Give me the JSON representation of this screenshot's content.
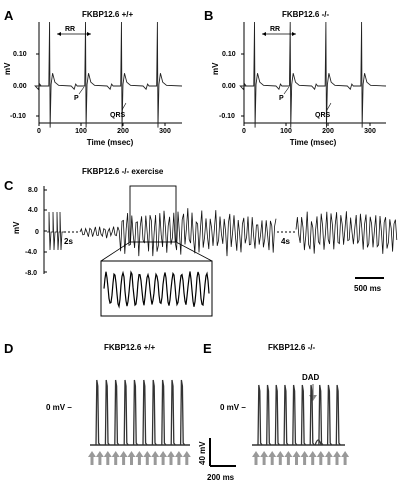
{
  "panels": {
    "A": {
      "letter": "A",
      "title": "FKBP12.6 +/+",
      "ylabel": "mV",
      "yticks": [
        "0.10",
        "0.00",
        "-0.10"
      ],
      "xticks": [
        "0",
        "100",
        "200",
        "300"
      ],
      "xlabel": "Time (msec)",
      "rr_label": "RR",
      "p_label": "P",
      "qrs_label": "QRS"
    },
    "B": {
      "letter": "B",
      "title": "FKBP12.6 -/-",
      "ylabel": "mV",
      "yticks": [
        "0.10",
        "0.00",
        "-0.10"
      ],
      "xticks": [
        "0",
        "100",
        "200",
        "300"
      ],
      "xlabel": "Time (msec)",
      "rr_label": "RR",
      "p_label": "P",
      "qrs_label": "QRS"
    },
    "C": {
      "letter": "C",
      "title": "FKBP12.6 -/-  exercise",
      "ylabel": "mV",
      "yticks": [
        "8.0",
        "4.0",
        "0",
        "-4.0",
        "-8.0"
      ],
      "gap_labels": [
        "2s",
        "4s"
      ],
      "scale_label": "500 ms"
    },
    "D": {
      "letter": "D",
      "title": "FKBP12.6 +/+",
      "zero_label": "0 mV –"
    },
    "E": {
      "letter": "E",
      "title": "FKBP12.6 -/-",
      "zero_label": "0 mV –",
      "dad_label": "DAD",
      "vscale_label": "40 mV",
      "tscale_label": "200 ms"
    }
  },
  "chart_data": [
    {
      "type": "line",
      "panel": "A",
      "title": "FKBP12.6 +/+",
      "xlabel": "Time (msec)",
      "ylabel": "mV",
      "xlim": [
        0,
        370
      ],
      "ylim": [
        -0.13,
        0.2
      ],
      "r_peak_times_ms": [
        20,
        115,
        210,
        305
      ],
      "rr_interval_ms": 95
    },
    {
      "type": "line",
      "panel": "B",
      "title": "FKBP12.6 -/-",
      "xlabel": "Time (msec)",
      "ylabel": "mV",
      "xlim": [
        0,
        370
      ],
      "ylim": [
        -0.13,
        0.2
      ],
      "r_peak_times_ms": [
        20,
        115,
        210,
        305
      ],
      "rr_interval_ms": 95
    },
    {
      "type": "line",
      "panel": "C",
      "title": "FKBP12.6 -/-  exercise",
      "ylabel": "mV",
      "ylim": [
        -8.0,
        8.0
      ],
      "segments": [
        "baseline",
        "2s gap",
        "ventricular tachycardia",
        "4s gap",
        "ventricular tachycardia"
      ]
    },
    {
      "type": "line",
      "panel": "D",
      "title": "FKBP12.6 +/+",
      "action_potentials": 10,
      "pacing_stimuli": 13
    },
    {
      "type": "line",
      "panel": "E",
      "title": "FKBP12.6 -/-",
      "action_potentials": 10,
      "pacing_stimuli": 12,
      "annotation": "DAD"
    }
  ],
  "colors": {
    "trace": "#222222",
    "arrow": "#888888"
  }
}
